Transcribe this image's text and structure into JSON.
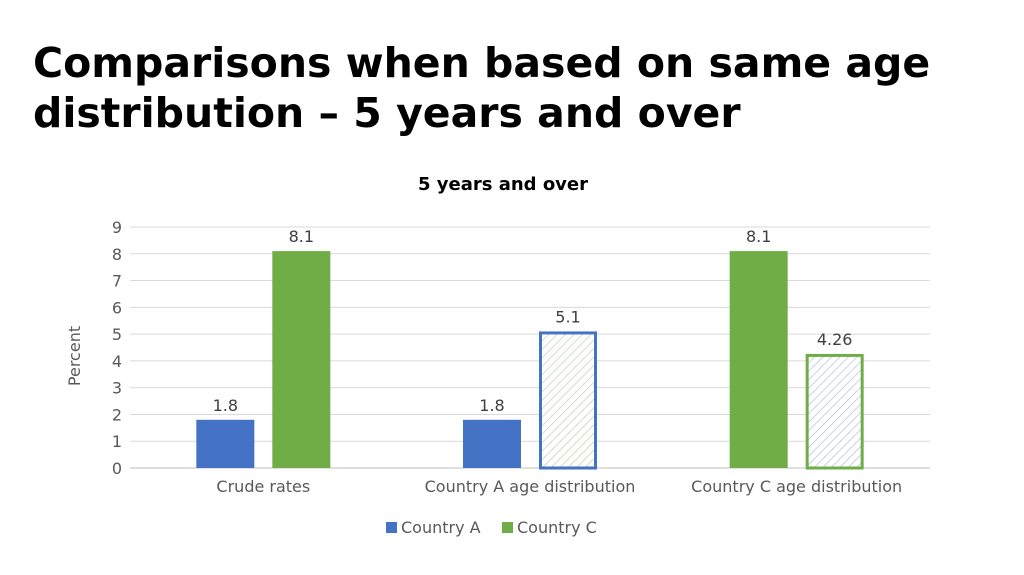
{
  "slide": {
    "title_line1": "Comparisons when based on same age",
    "title_line2": "distribution – 5 years and over"
  },
  "colors": {
    "country_a": "#4472C4",
    "country_c": "#70AD47",
    "grid": "#d9d9d9",
    "text": "#404040"
  },
  "chart_data": {
    "type": "bar",
    "title": "5 years and over",
    "xlabel": "",
    "ylabel": "Percent",
    "ylim": [
      0,
      9
    ],
    "yticks": [
      "0",
      "1",
      "2",
      "3",
      "4",
      "5",
      "6",
      "7",
      "8",
      "9"
    ],
    "grid": true,
    "legend": "bottom",
    "categories": [
      "Crude rates",
      "Country A age distribution",
      "Country C age distribution"
    ],
    "series": [
      {
        "name": "Country A",
        "values": [
          1.8,
          1.8,
          null
        ],
        "labels": [
          "1.8",
          "1.8",
          ""
        ]
      },
      {
        "name": "Country C",
        "values": [
          8.1,
          5.1,
          8.1
        ],
        "labels": [
          "8.1",
          "5.1",
          "8.1"
        ]
      },
      {
        "name": "",
        "values": [
          null,
          null,
          4.26
        ],
        "labels": [
          "",
          "",
          "4.26"
        ]
      }
    ]
  }
}
